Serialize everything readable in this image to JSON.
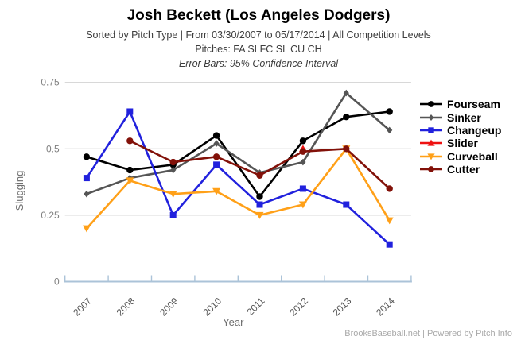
{
  "header": {
    "title": "Josh Beckett (Los Angeles Dodgers)",
    "subtitle1": "Sorted by Pitch Type | From 03/30/2007 to 05/17/2014 | All Competition Levels",
    "subtitle2": "Pitches: FA SI FC SL CU CH",
    "subtitle3": "Error Bars: 95% Confidence Interval"
  },
  "footer": {
    "credit": "BrooksBaseball.net | Powered by Pitch Info"
  },
  "chart_data": {
    "type": "line",
    "title": "Josh Beckett (Los Angeles Dodgers)",
    "xlabel": "Year",
    "ylabel": "Slugging",
    "categories": [
      "2007",
      "2008",
      "2009",
      "2010",
      "2011",
      "2012",
      "2013",
      "2014"
    ],
    "ylim": [
      0,
      0.75
    ],
    "yticks": [
      {
        "value": 0,
        "label": "0"
      },
      {
        "value": 0.25,
        "label": "0.25"
      },
      {
        "value": 0.5,
        "label": "0.5"
      },
      {
        "value": 0.75,
        "label": "0.75"
      }
    ],
    "grid": true,
    "legend_position": "right",
    "series": [
      {
        "name": "Fourseam",
        "color": "#000000",
        "marker": "circle",
        "values": [
          0.47,
          0.42,
          0.44,
          0.55,
          0.32,
          0.53,
          0.62,
          0.64
        ]
      },
      {
        "name": "Sinker",
        "color": "#555555",
        "marker": "diamond",
        "values": [
          0.33,
          0.39,
          0.42,
          0.52,
          0.41,
          0.45,
          0.71,
          0.57
        ]
      },
      {
        "name": "Changeup",
        "color": "#2121dd",
        "marker": "square",
        "values": [
          0.39,
          0.64,
          0.25,
          0.44,
          0.29,
          0.35,
          0.29,
          0.14
        ]
      },
      {
        "name": "Slider",
        "color": "#ee1111",
        "marker": "triangle-up",
        "values": [
          null,
          null,
          null,
          null,
          null,
          0.5,
          null,
          null
        ]
      },
      {
        "name": "Curveball",
        "color": "#ffa018",
        "marker": "triangle-down",
        "values": [
          0.2,
          0.38,
          0.33,
          0.34,
          0.25,
          0.29,
          0.5,
          0.23
        ]
      },
      {
        "name": "Cutter",
        "color": "#821109",
        "marker": "circle",
        "values": [
          null,
          0.53,
          0.45,
          0.47,
          0.4,
          0.49,
          0.5,
          0.35
        ]
      }
    ]
  }
}
